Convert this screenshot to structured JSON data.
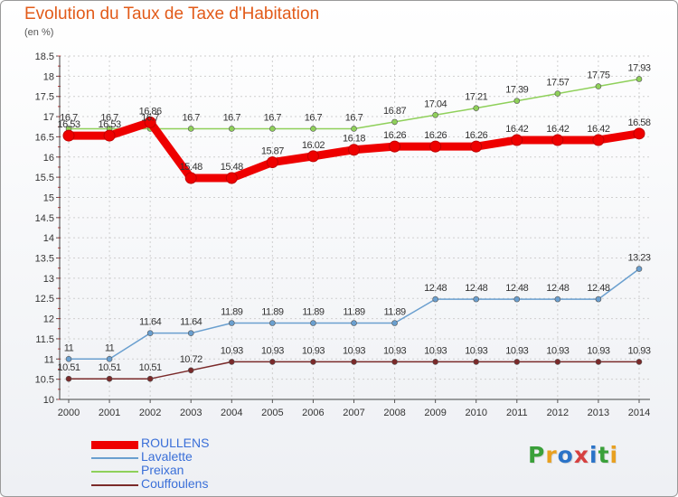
{
  "header": {
    "title": "Evolution du Taux de Taxe d'Habitation",
    "unit": "(en %)"
  },
  "logo": {
    "text": "Proxiti",
    "letter_colors": [
      "#3aa03a",
      "#e8a020",
      "#2a73c8",
      "#d64040",
      "#2a73c8",
      "#3aa03a",
      "#e8a020"
    ]
  },
  "chart_data": {
    "type": "line",
    "x": [
      2000,
      2001,
      2002,
      2003,
      2004,
      2005,
      2006,
      2007,
      2008,
      2009,
      2010,
      2011,
      2012,
      2013,
      2014
    ],
    "ylim": [
      10,
      18.5
    ],
    "yticks": [
      "10",
      "10.5",
      "11",
      "11.5",
      "12",
      "12.5",
      "13",
      "13.5",
      "14",
      "14.5",
      "15",
      "15.5",
      "16",
      "16.5",
      "17",
      "17.5",
      "18",
      "18.5"
    ],
    "grid": true,
    "legend": "bottom-left",
    "series": [
      {
        "name": "ROULLENS",
        "color": "#ee0000",
        "values": [
          16.53,
          16.53,
          16.86,
          15.48,
          15.48,
          15.87,
          16.02,
          16.18,
          16.26,
          16.26,
          16.26,
          16.42,
          16.42,
          16.42,
          16.58
        ],
        "labels": [
          "16.53",
          "16.53",
          "16.86",
          "15.48",
          "15.48",
          "15.87",
          "16.02",
          "16.18",
          "16.26",
          "16.26",
          "16.26",
          "16.42",
          "16.42",
          "16.42",
          "16.58"
        ]
      },
      {
        "name": "Lavalette",
        "color": "#6a9fcf",
        "values": [
          11,
          11,
          11.64,
          11.64,
          11.89,
          11.89,
          11.89,
          11.89,
          11.89,
          12.48,
          12.48,
          12.48,
          12.48,
          12.48,
          13.23
        ],
        "labels": [
          "11",
          "11",
          "11.64",
          "11.64",
          "11.89",
          "11.89",
          "11.89",
          "11.89",
          "11.89",
          "12.48",
          "12.48",
          "12.48",
          "12.48",
          "12.48",
          "13.23"
        ]
      },
      {
        "name": "Preixan",
        "color": "#8fd05a",
        "values": [
          16.7,
          16.7,
          16.7,
          16.7,
          16.7,
          16.7,
          16.7,
          16.7,
          16.87,
          17.04,
          17.21,
          17.39,
          17.57,
          17.75,
          17.93
        ],
        "labels": [
          "16.7",
          "16.7",
          "16.7",
          "16.7",
          "16.7",
          "16.7",
          "16.7",
          "16.7",
          "16.87",
          "17.04",
          "17.21",
          "17.39",
          "17.57",
          "17.75",
          "17.93"
        ]
      },
      {
        "name": "Couffoulens",
        "color": "#7a2a2a",
        "values": [
          10.51,
          10.51,
          10.51,
          10.72,
          10.93,
          10.93,
          10.93,
          10.93,
          10.93,
          10.93,
          10.93,
          10.93,
          10.93,
          10.93,
          10.93
        ],
        "labels": [
          "10.51",
          "10.51",
          "10.51",
          "10.72",
          "10.93",
          "10.93",
          "10.93",
          "10.93",
          "10.93",
          "10.93",
          "10.93",
          "10.93",
          "10.93",
          "10.93",
          "10.93"
        ]
      }
    ]
  }
}
